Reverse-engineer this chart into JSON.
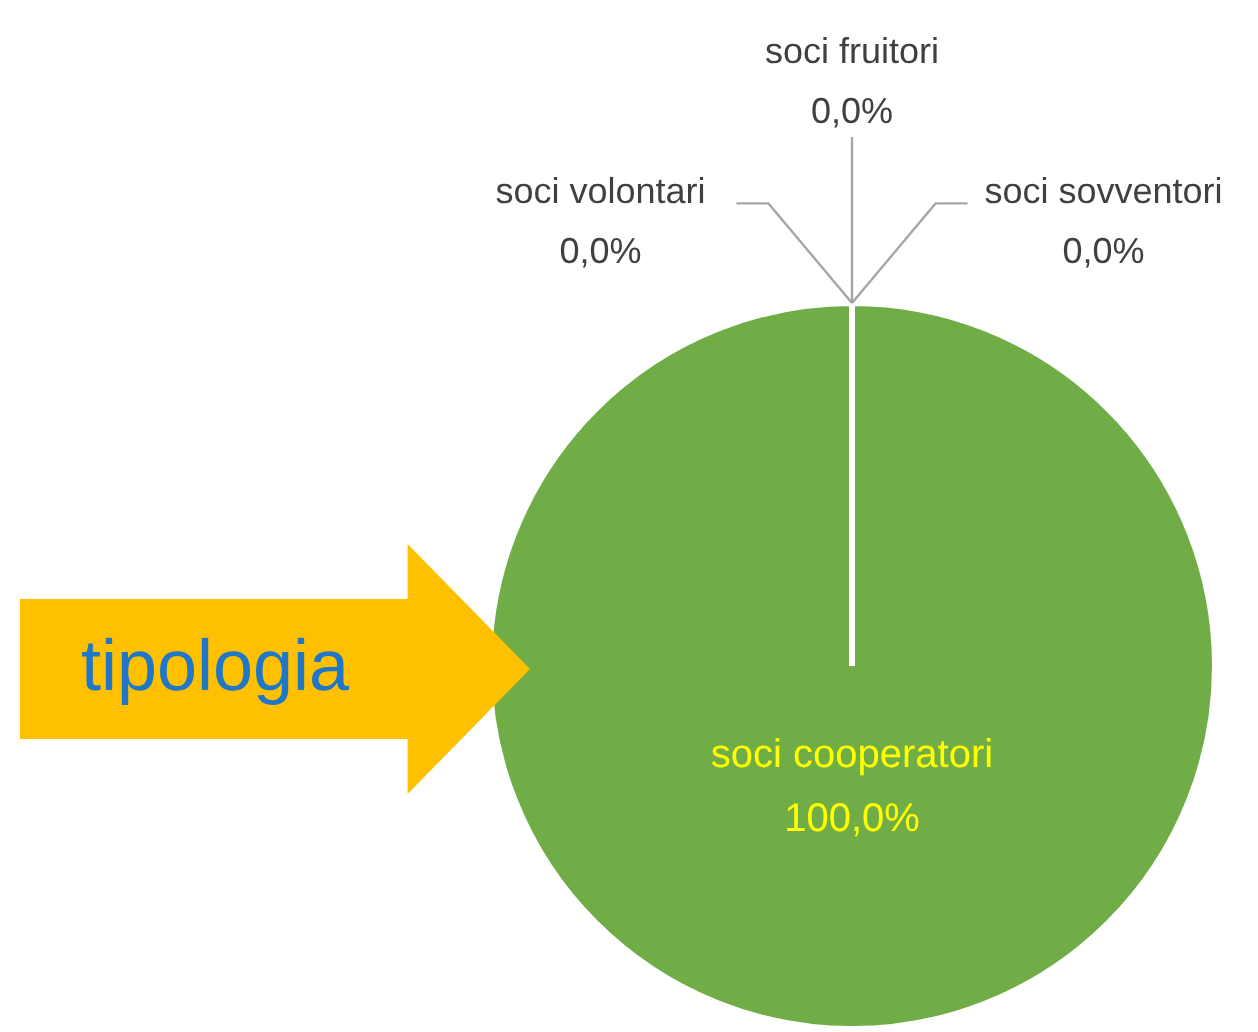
{
  "chart_data": {
    "type": "pie",
    "title": "tipologia",
    "categories": [
      "soci cooperatori",
      "soci volontari",
      "soci fruitori",
      "soci sovventori"
    ],
    "values": [
      100,
      0,
      0,
      0
    ],
    "value_labels": [
      "100,0%",
      "0,0%",
      "0,0%",
      "0,0%"
    ],
    "colors": [
      "#70ad47",
      "#a5a5a5",
      "#ffc000",
      "#4472c4"
    ]
  }
}
